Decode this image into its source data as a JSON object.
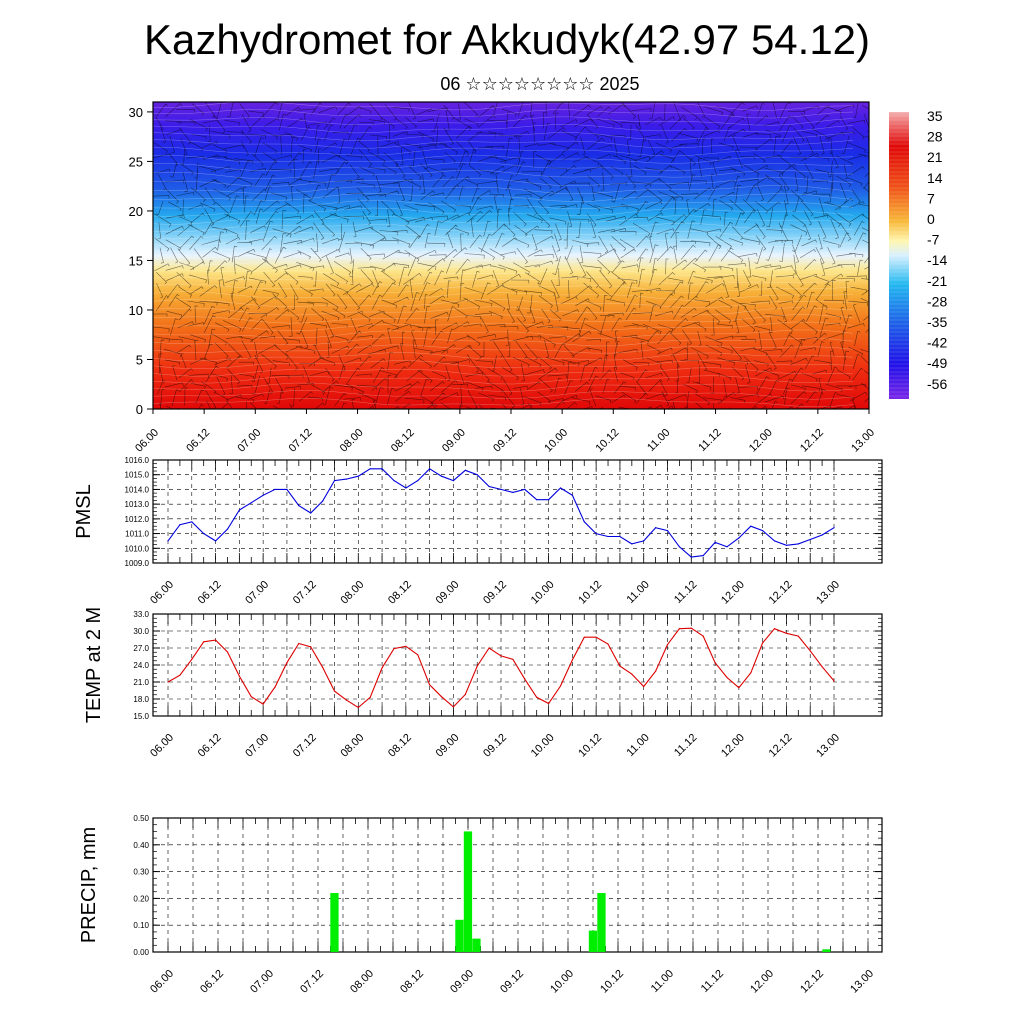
{
  "title": "Kazhydromet for Akkudyk(42.97 54.12)",
  "subtitle": "06 ☆☆☆☆☆☆☆☆ 2025",
  "chart_data": [
    {
      "type": "heatmap",
      "panel": "cross-section",
      "title": "Kazhydromet for Akkudyk(42.97 54.12)",
      "x_ticks": [
        "06.00",
        "06.12",
        "07.00",
        "07.12",
        "08.00",
        "08.12",
        "09.00",
        "09.12",
        "10.00",
        "10.12",
        "11.00",
        "11.12",
        "12.00",
        "12.12",
        "13.00"
      ],
      "y_ticks": [
        "0",
        "5",
        "10",
        "15",
        "20",
        "25",
        "30"
      ],
      "ylim": [
        0,
        31
      ],
      "colorbar_labels": [
        "35",
        "28",
        "21",
        "14",
        "7",
        "0",
        "-7",
        "-14",
        "-21",
        "-28",
        "-35",
        "-42",
        "-49",
        "-56"
      ],
      "colors": {
        "cold": "#5a10e0",
        "blue": "#1838e8",
        "cyan": "#20b8f0",
        "yellow": "#fff0a0",
        "orange": "#f5a020",
        "red": "#e01010"
      }
    },
    {
      "type": "line",
      "ylabel": "PMSL",
      "y_ticks": [
        "1009.0",
        "1010.0",
        "1011.0",
        "1012.0",
        "1013.0",
        "1014.0",
        "1015.0",
        "1016.0"
      ],
      "ylim": [
        1009,
        1016
      ],
      "x_ticks": [
        "06.00",
        "06.12",
        "07.00",
        "07.12",
        "08.00",
        "08.12",
        "09.00",
        "09.12",
        "10.00",
        "10.12",
        "11.00",
        "11.12",
        "12.00",
        "12.12",
        "13.00"
      ],
      "color": "#0000dd",
      "series": [
        {
          "values": [
            1010.5,
            1011.6,
            1011.8,
            1011.0,
            1010.5,
            1011.3,
            1012.6,
            1013.1,
            1013.6,
            1014.0,
            1014.0,
            1012.9,
            1012.4,
            1013.2,
            1014.6,
            1014.7,
            1014.9,
            1015.4,
            1015.4,
            1014.6,
            1014.1,
            1014.6,
            1015.4,
            1014.9,
            1014.6,
            1015.3,
            1015.0,
            1014.2,
            1014.0,
            1013.8,
            1014.0,
            1013.3,
            1013.3,
            1014.1,
            1013.6,
            1011.8,
            1011.0,
            1010.8,
            1010.8,
            1010.3,
            1010.5,
            1011.4,
            1011.2,
            1010.1,
            1009.4,
            1009.5,
            1010.4,
            1010.1,
            1010.7,
            1011.5,
            1011.2,
            1010.5,
            1010.2,
            1010.3,
            1010.6,
            1010.9,
            1011.4
          ]
        }
      ]
    },
    {
      "type": "line",
      "ylabel": "TEMP at 2 M",
      "y_ticks": [
        "15.0",
        "18.0",
        "21.0",
        "24.0",
        "27.0",
        "30.0",
        "33.0"
      ],
      "ylim": [
        15,
        33
      ],
      "x_ticks": [
        "06.00",
        "06.12",
        "07.00",
        "07.12",
        "08.00",
        "08.12",
        "09.00",
        "09.12",
        "10.00",
        "10.12",
        "11.00",
        "11.12",
        "12.00",
        "12.12",
        "13.00"
      ],
      "color": "#dd0000",
      "series": [
        {
          "values": [
            21.0,
            22.2,
            25.0,
            28.1,
            28.4,
            26.3,
            22.0,
            18.4,
            17.1,
            20.1,
            24.4,
            27.8,
            27.2,
            23.6,
            19.4,
            17.8,
            16.5,
            18.3,
            23.5,
            26.9,
            27.3,
            25.8,
            20.5,
            18.4,
            16.6,
            18.8,
            23.8,
            27.0,
            25.6,
            25.0,
            21.5,
            18.3,
            17.2,
            20.3,
            24.9,
            28.9,
            28.9,
            27.7,
            23.8,
            22.4,
            20.2,
            22.9,
            27.6,
            30.4,
            30.5,
            29.1,
            24.4,
            21.8,
            20.0,
            22.6,
            27.9,
            30.4,
            29.6,
            29.1,
            26.5,
            23.7,
            21.2
          ]
        }
      ]
    },
    {
      "type": "bar",
      "ylabel": "PRECIP, mm",
      "y_ticks": [
        "0.00",
        "0.10",
        "0.20",
        "0.30",
        "0.40",
        "0.50"
      ],
      "ylim": [
        0,
        0.5
      ],
      "x_ticks": [
        "06.00",
        "06.12",
        "07.00",
        "07.12",
        "08.00",
        "08.12",
        "09.00",
        "09.12",
        "10.00",
        "10.12",
        "11.00",
        "11.12",
        "12.00",
        "12.12",
        "13.00"
      ],
      "color": "#00ee00",
      "bars": [
        {
          "x": 3.33,
          "value": 0.22
        },
        {
          "x": 5.83,
          "value": 0.12
        },
        {
          "x": 6.0,
          "value": 0.45
        },
        {
          "x": 6.17,
          "value": 0.05
        },
        {
          "x": 8.5,
          "value": 0.08
        },
        {
          "x": 8.67,
          "value": 0.22
        },
        {
          "x": 13.17,
          "value": 0.01
        }
      ]
    }
  ]
}
